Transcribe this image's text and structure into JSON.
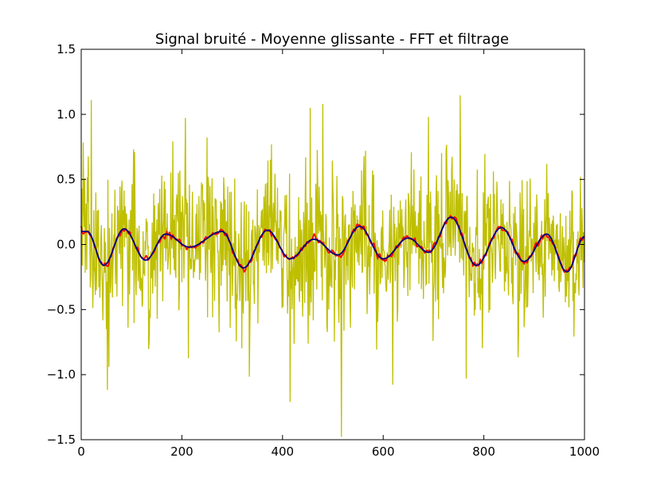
{
  "chart_data": {
    "type": "line",
    "title": "Signal bruité - Moyenne glissante - FFT et filtrage",
    "xlabel": "",
    "ylabel": "",
    "xlim": [
      0,
      1000
    ],
    "ylim": [
      -1.5,
      1.5
    ],
    "x_ticks": [
      0,
      200,
      400,
      600,
      800,
      1000
    ],
    "x_tick_labels": [
      "0",
      "200",
      "400",
      "600",
      "800",
      "1000"
    ],
    "y_ticks": [
      1.5,
      1.0,
      0.5,
      0.0,
      -0.5,
      -1.0,
      -1.5
    ],
    "y_tick_labels": [
      "1.5",
      "1.0",
      "0.5",
      "0.0",
      "−0.5",
      "−1.0",
      "−1.5"
    ],
    "grid": false,
    "legend": "none",
    "series": [
      {
        "color": "#bfbf00",
        "sampling": "1 sample per x unit, x = 0..1000",
        "peaks": [
          {
            "x": 20,
            "y": 1.11
          },
          {
            "x": 55,
            "y": -0.94
          },
          {
            "x": 415,
            "y": -1.21
          },
          {
            "x": 455,
            "y": 1.05
          },
          {
            "x": 480,
            "y": 1.08
          },
          {
            "x": 765,
            "y": -1.03
          },
          {
            "x": 690,
            "y": 0.98
          }
        ]
      },
      {
        "color": "#ff0000",
        "min": -0.18,
        "max": 0.2
      },
      {
        "color": "#000080",
        "points": [
          {
            "x": 0,
            "y": 0.1
          },
          {
            "x": 12,
            "y": 0.1
          },
          {
            "x": 45,
            "y": -0.16
          },
          {
            "x": 85,
            "y": 0.12
          },
          {
            "x": 128,
            "y": -0.12
          },
          {
            "x": 168,
            "y": 0.08
          },
          {
            "x": 215,
            "y": -0.02
          },
          {
            "x": 280,
            "y": 0.1
          },
          {
            "x": 322,
            "y": -0.18
          },
          {
            "x": 370,
            "y": 0.11
          },
          {
            "x": 415,
            "y": -0.11
          },
          {
            "x": 462,
            "y": 0.04
          },
          {
            "x": 510,
            "y": -0.08
          },
          {
            "x": 553,
            "y": 0.14
          },
          {
            "x": 600,
            "y": -0.11
          },
          {
            "x": 650,
            "y": 0.05
          },
          {
            "x": 690,
            "y": -0.06
          },
          {
            "x": 735,
            "y": 0.21
          },
          {
            "x": 785,
            "y": -0.16
          },
          {
            "x": 835,
            "y": 0.13
          },
          {
            "x": 880,
            "y": -0.13
          },
          {
            "x": 925,
            "y": 0.08
          },
          {
            "x": 965,
            "y": -0.21
          },
          {
            "x": 1000,
            "y": 0.06
          }
        ]
      }
    ]
  }
}
